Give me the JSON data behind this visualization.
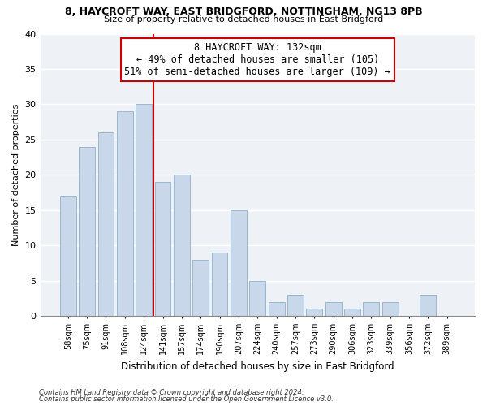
{
  "title1": "8, HAYCROFT WAY, EAST BRIDGFORD, NOTTINGHAM, NG13 8PB",
  "title2": "Size of property relative to detached houses in East Bridgford",
  "xlabel": "Distribution of detached houses by size in East Bridgford",
  "ylabel": "Number of detached properties",
  "bar_labels": [
    "58sqm",
    "75sqm",
    "91sqm",
    "108sqm",
    "124sqm",
    "141sqm",
    "157sqm",
    "174sqm",
    "190sqm",
    "207sqm",
    "224sqm",
    "240sqm",
    "257sqm",
    "273sqm",
    "290sqm",
    "306sqm",
    "323sqm",
    "339sqm",
    "356sqm",
    "372sqm",
    "389sqm"
  ],
  "bar_values": [
    17,
    24,
    26,
    29,
    30,
    19,
    20,
    8,
    9,
    15,
    5,
    2,
    3,
    1,
    2,
    1,
    2,
    2,
    0,
    3,
    0
  ],
  "bar_color": "#c8d8ea",
  "bar_edge_color": "#9ab8cc",
  "vline_x": 4.5,
  "vline_color": "#cc0000",
  "annotation_title": "8 HAYCROFT WAY: 132sqm",
  "annotation_line1": "← 49% of detached houses are smaller (105)",
  "annotation_line2": "51% of semi-detached houses are larger (109) →",
  "annotation_box_color": "#ffffff",
  "annotation_box_edge": "#cc0000",
  "ylim": [
    0,
    40
  ],
  "yticks": [
    0,
    5,
    10,
    15,
    20,
    25,
    30,
    35,
    40
  ],
  "footer1": "Contains HM Land Registry data © Crown copyright and database right 2024.",
  "footer2": "Contains public sector information licensed under the Open Government Licence v3.0.",
  "bg_color": "#ffffff",
  "plot_bg_color": "#eef2f7"
}
